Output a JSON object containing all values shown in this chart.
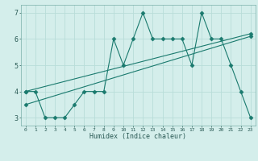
{
  "line1_x": [
    0,
    1,
    2,
    3,
    4,
    5,
    6,
    7,
    8,
    9,
    10,
    11,
    12,
    13,
    14,
    15,
    16,
    17,
    18,
    19,
    20,
    21,
    22,
    23
  ],
  "line1_y": [
    4,
    4,
    3,
    3,
    3,
    3.5,
    4,
    4,
    4,
    6,
    5,
    6,
    7,
    6,
    6,
    6,
    6,
    5,
    7,
    6,
    6,
    5,
    4,
    3
  ],
  "line2_x": [
    0,
    23
  ],
  "line2_y": [
    3.5,
    6.1
  ],
  "line3_x": [
    0,
    23
  ],
  "line3_y": [
    4.0,
    6.2
  ],
  "line_color": "#1a7a6e",
  "bg_color": "#d4eeeb",
  "grid_color": "#b8ddd9",
  "xlabel": "Humidex (Indice chaleur)",
  "xlim": [
    -0.5,
    23.5
  ],
  "ylim": [
    2.7,
    7.3
  ],
  "xticks": [
    0,
    1,
    2,
    3,
    4,
    5,
    6,
    7,
    8,
    9,
    10,
    11,
    12,
    13,
    14,
    15,
    16,
    17,
    18,
    19,
    20,
    21,
    22,
    23
  ],
  "yticks": [
    3,
    4,
    5,
    6,
    7
  ],
  "marker": "D",
  "markersize": 2.5
}
